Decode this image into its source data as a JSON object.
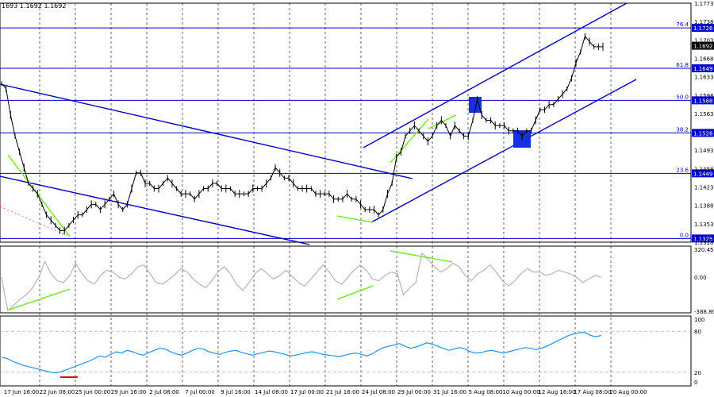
{
  "header": {
    "ohlc": "1693 1.1692 1.1692"
  },
  "price_axis": {
    "ticks": [
      "1.1773",
      "1.1738",
      "1.1703",
      "1.1668",
      "1.1633",
      "1.1598",
      "1.1563",
      "1.1493",
      "1.1458",
      "1.1423",
      "1.1388",
      "1.1353",
      "1.1318"
    ],
    "current_price": "1.1692"
  },
  "fib_levels": [
    {
      "pct": "76.4",
      "price": "1.1726"
    },
    {
      "pct": "61.8",
      "price": "1.1649"
    },
    {
      "pct": "50.0",
      "price": "1.1588"
    },
    {
      "pct": "38.2",
      "price": "1.1526"
    },
    {
      "pct": "23.6",
      "price": "1.1449"
    },
    {
      "pct": "0.0",
      "price": "1.1325"
    }
  ],
  "cci_axis": {
    "top": "320.4558",
    "mid": "0.00",
    "bottom": "-388.803"
  },
  "rsi_axis": {
    "top": "100",
    "upper": "80",
    "lower": "20",
    "bottom": "0"
  },
  "time_axis": [
    "17 Jun 16:00",
    "22 Jun 08:00",
    "25 Jun 00:00",
    "29 Jun 16:00",
    "2 Jul 08:00",
    "7 Jul 00:00",
    "9 Jul 16:00",
    "14 Jul 08:00",
    "17 Jul 00:00",
    "21 Jul 16:00",
    "24 Jul 08:00",
    "29 Jul 00:00",
    "31 Jul 16:00",
    "5 Aug 08:00",
    "10 Aug 00:00",
    "12 Aug 16:00",
    "17 Aug 08:00",
    "20 Aug 00:00"
  ],
  "colors": {
    "blue": "#0000cc",
    "green": "#7ee82a",
    "grey": "#b4b4b4",
    "rsi": "#1e90ff",
    "red": "#e01010",
    "accent_box": "#1530e0"
  },
  "chart_data": [
    {
      "type": "line",
      "title": "",
      "series": [
        {
          "values": [
            1.162,
            1.161,
            1.156,
            1.152,
            1.149,
            1.146,
            1.143,
            1.142,
            1.141,
            1.139,
            1.137,
            1.136,
            1.135,
            1.134,
            1.134,
            1.135,
            1.136,
            1.137,
            1.137,
            1.138,
            1.139,
            1.139,
            1.138,
            1.139,
            1.14,
            1.141,
            1.139,
            1.138,
            1.139,
            1.142,
            1.145,
            1.145,
            1.143,
            1.143,
            1.142,
            1.142,
            1.143,
            1.144,
            1.143,
            1.142,
            1.141,
            1.141,
            1.141,
            1.14,
            1.141,
            1.142,
            1.142,
            1.143,
            1.143,
            1.142,
            1.142,
            1.142,
            1.141,
            1.141,
            1.141,
            1.141,
            1.142,
            1.142,
            1.142,
            1.143,
            1.144,
            1.146,
            1.145,
            1.144,
            1.144,
            1.143,
            1.142,
            1.142,
            1.142,
            1.142,
            1.141,
            1.141,
            1.141,
            1.141,
            1.14,
            1.14,
            1.14,
            1.141,
            1.14,
            1.14,
            1.139,
            1.138,
            1.138,
            1.138,
            1.137,
            1.138,
            1.141,
            1.143,
            1.148,
            1.149,
            1.152,
            1.153,
            1.154,
            1.153,
            1.152,
            1.151,
            1.152,
            1.154,
            1.155,
            1.154,
            1.152,
            1.154,
            1.153,
            1.152,
            1.152,
            1.155,
            1.159,
            1.156,
            1.155,
            1.155,
            1.154,
            1.154,
            1.154,
            1.153,
            1.153,
            1.153,
            1.152,
            1.153,
            1.153,
            1.155,
            1.157,
            1.157,
            1.158,
            1.158,
            1.159,
            1.16,
            1.161,
            1.163,
            1.166,
            1.168,
            1.171,
            1.17,
            1.169,
            1.169,
            1.169
          ]
        }
      ],
      "ylim": [
        1.1318,
        1.1773
      ]
    },
    {
      "type": "line",
      "title": "",
      "series": [
        {
          "values": [
            0,
            -380,
            -320,
            -250,
            -200,
            -120,
            0,
            180,
            40,
            -40,
            -60,
            20,
            160,
            40,
            -40,
            -80,
            20,
            80,
            60,
            0,
            -20,
            40,
            120,
            140,
            40,
            -60,
            -80,
            -30,
            30,
            100,
            60,
            -20,
            -80,
            -120,
            -40,
            60,
            120,
            40,
            -80,
            -150,
            -60,
            40,
            100,
            40,
            -20,
            20,
            80,
            10,
            -60,
            -100,
            -20,
            60,
            140,
            60,
            -40,
            -80,
            0,
            80,
            140,
            80,
            -20,
            -40,
            20,
            60,
            40,
            -200,
            -120,
            -60,
            280,
            200,
            120,
            60,
            100,
            160,
            120,
            20,
            -40,
            40,
            80,
            140,
            60,
            -40,
            -100,
            -40,
            40,
            100,
            60,
            60,
            20,
            40,
            80,
            60,
            40,
            0,
            -60,
            -20,
            20,
            0
          ]
        }
      ],
      "ylim": [
        -388.803,
        320.4558
      ]
    },
    {
      "type": "line",
      "title": "",
      "series": [
        {
          "values": [
            42,
            40,
            36,
            33,
            30,
            28,
            26,
            24,
            22,
            20,
            19,
            21,
            24,
            27,
            30,
            33,
            36,
            40,
            44,
            42,
            46,
            50,
            48,
            52,
            50,
            47,
            45,
            49,
            52,
            55,
            54,
            50,
            47,
            45,
            48,
            52,
            55,
            54,
            50,
            48,
            46,
            49,
            51,
            52,
            49,
            47,
            45,
            47,
            49,
            51,
            50,
            48,
            46,
            44,
            45,
            47,
            49,
            50,
            48,
            46,
            45,
            44,
            43,
            45,
            47,
            48,
            46,
            44,
            47,
            52,
            56,
            58,
            60,
            62,
            58,
            55,
            57,
            60,
            63,
            61,
            58,
            55,
            52,
            54,
            56,
            54,
            50,
            48,
            49,
            51,
            52,
            50,
            48,
            50,
            52,
            54,
            56,
            55,
            53,
            55,
            58,
            62,
            66,
            70,
            74,
            76,
            78,
            78,
            74,
            72,
            74
          ]
        }
      ],
      "ylim": [
        0,
        100
      ]
    }
  ]
}
